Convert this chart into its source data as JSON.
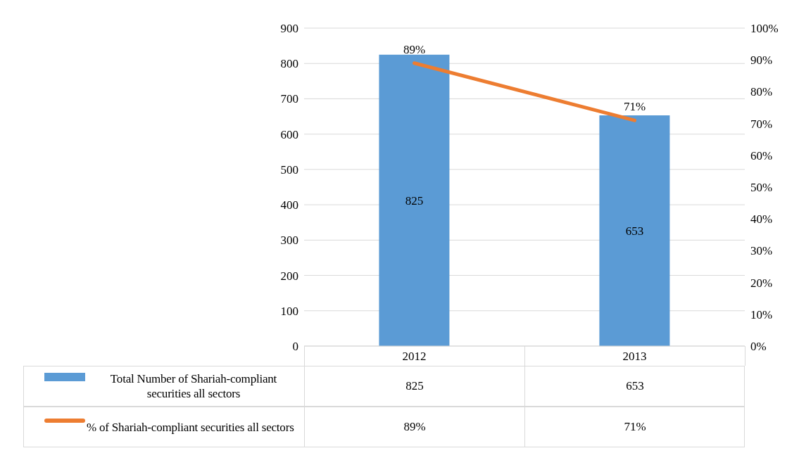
{
  "chart_data": {
    "type": "bar",
    "categories": [
      "2012",
      "2013"
    ],
    "series": [
      {
        "name": "Total Number of Shariah-compliant securities all sectors",
        "color": "#5b9bd5",
        "values": [
          825,
          653
        ],
        "value_labels": [
          "825",
          "653"
        ]
      },
      {
        "name": "% of Shariah-compliant securities all sectors",
        "type": "line",
        "axis": "y2",
        "color": "#ed7d31",
        "values": [
          89,
          71
        ],
        "value_labels": [
          "89%",
          "71%"
        ]
      }
    ],
    "ylim": [
      0,
      900
    ],
    "yticks": [
      0,
      100,
      200,
      300,
      400,
      500,
      600,
      700,
      800,
      900
    ],
    "y2lim": [
      0,
      100
    ],
    "y2ticks": [
      {
        "value": 0,
        "label": "0%"
      },
      {
        "value": 10,
        "label": "10%"
      },
      {
        "value": 20,
        "label": "20%"
      },
      {
        "value": 30,
        "label": "30%"
      },
      {
        "value": 40,
        "label": "40%"
      },
      {
        "value": 50,
        "label": "50%"
      },
      {
        "value": 60,
        "label": "60%"
      },
      {
        "value": 70,
        "label": "70%"
      },
      {
        "value": 80,
        "label": "80%"
      },
      {
        "value": 90,
        "label": "90%"
      },
      {
        "value": 100,
        "label": "100%"
      }
    ],
    "grid": "y",
    "legend": "bottom left",
    "marker": "none",
    "line_style": "solid"
  }
}
